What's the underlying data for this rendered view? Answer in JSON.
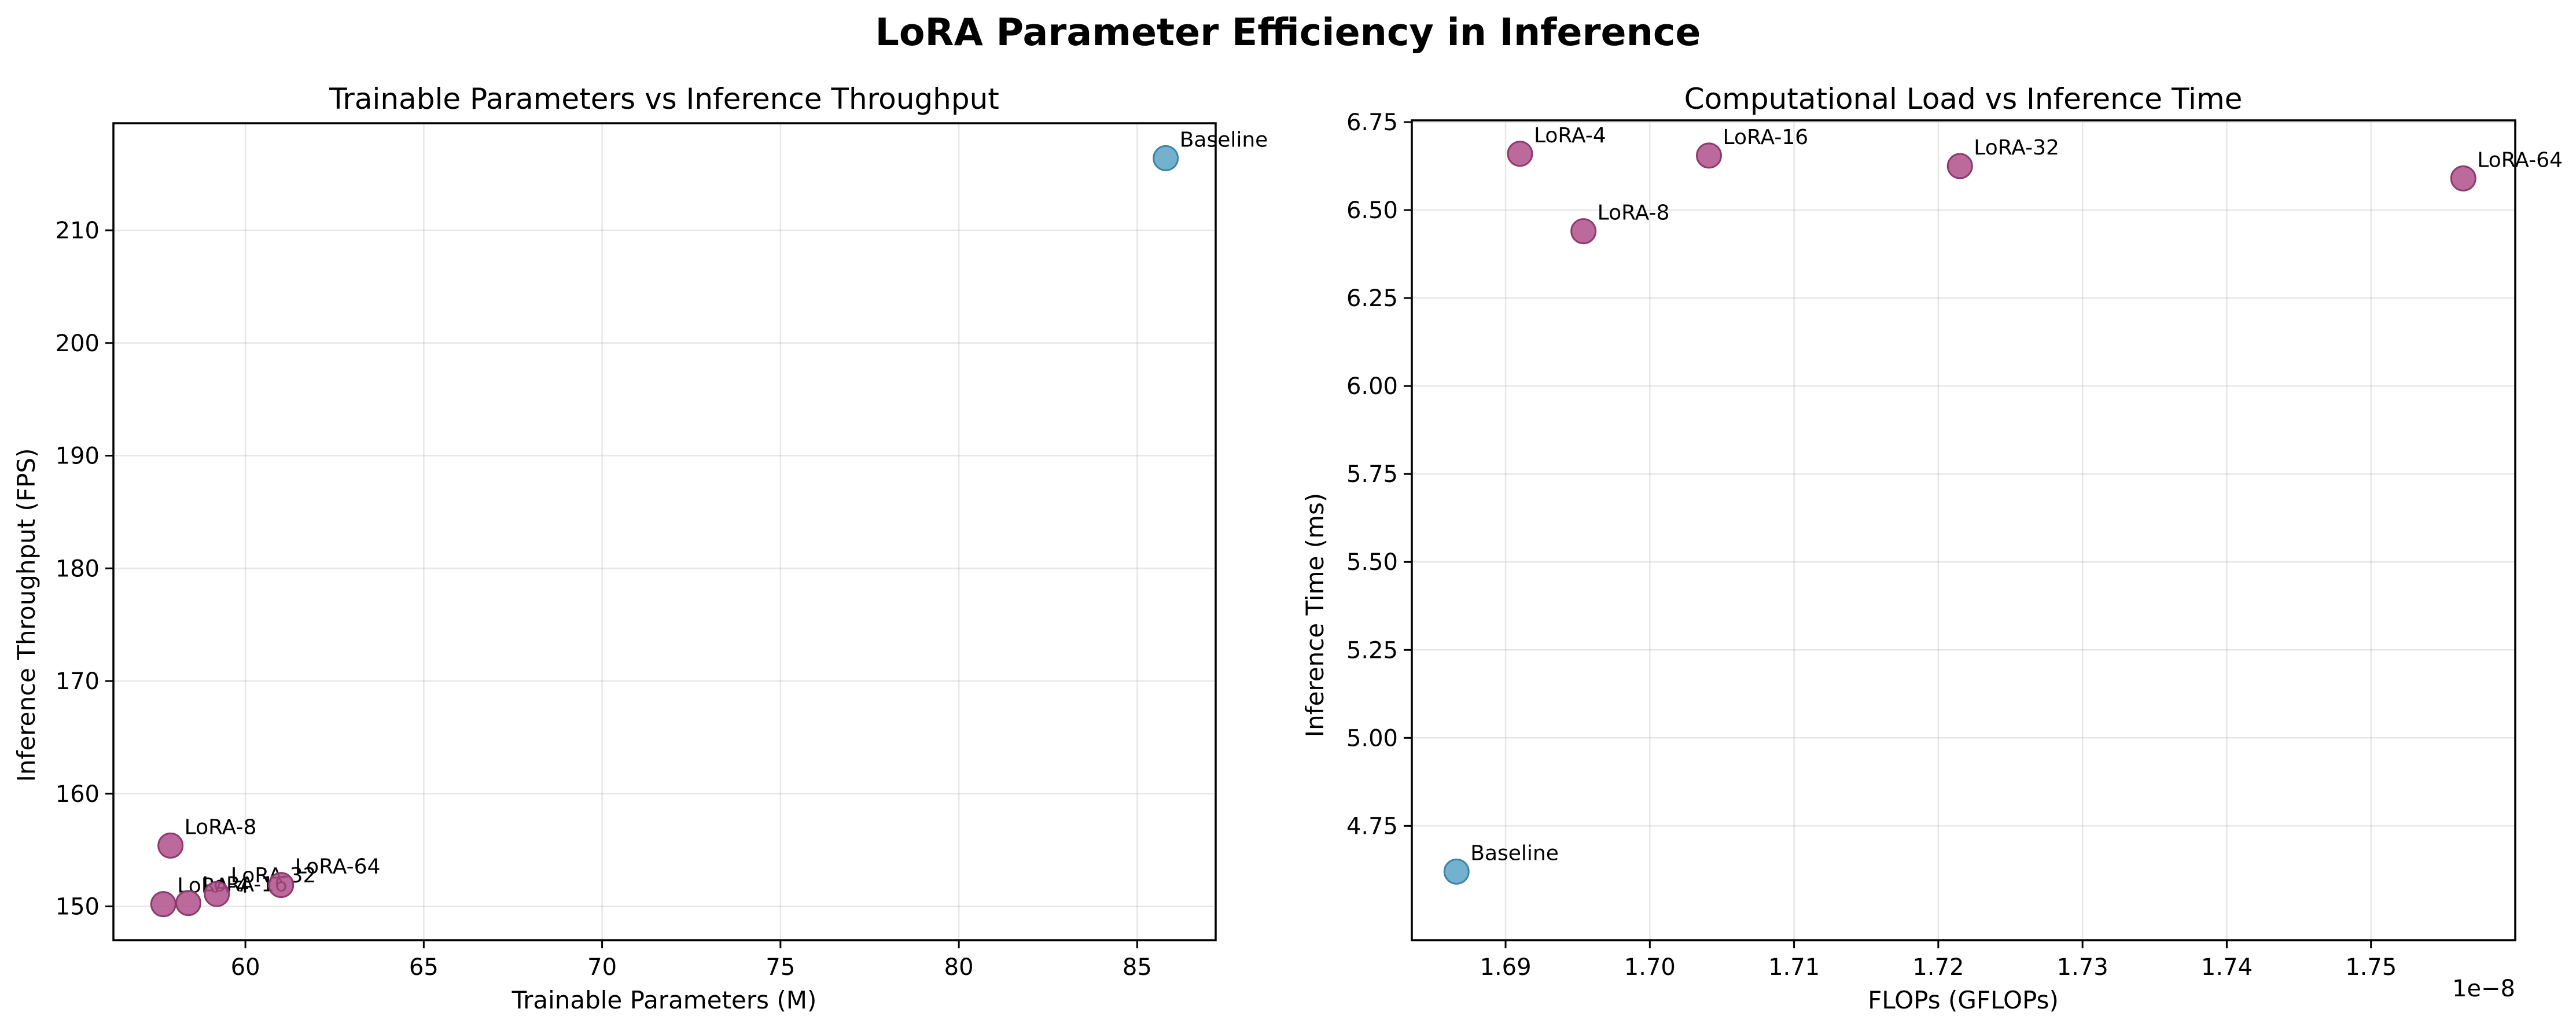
{
  "figure": {
    "title": "LoRA Parameter Efficiency in Inference"
  },
  "colors": {
    "baseline": "#5ba3c7",
    "baseline_edge": "#3d84a8",
    "lora": "#b0508a",
    "lora_edge": "#8c3b6d"
  },
  "chart_data": [
    {
      "type": "scatter",
      "title": "Trainable Parameters vs Inference Throughput",
      "xlabel": "Trainable Parameters (M)",
      "ylabel": "Inference Throughput (FPS)",
      "xlim": [
        56.3,
        87.2
      ],
      "ylim": [
        147.0,
        219.5
      ],
      "xticks": [
        60,
        65,
        70,
        75,
        80,
        85
      ],
      "yticks": [
        150,
        160,
        170,
        180,
        190,
        200,
        210
      ],
      "grid": true,
      "points": [
        {
          "label": "LoRA-4",
          "x": 57.7,
          "y": 150.2,
          "group": "lora"
        },
        {
          "label": "LoRA-8",
          "x": 57.9,
          "y": 155.4,
          "group": "lora"
        },
        {
          "label": "LoRA-16",
          "x": 58.4,
          "y": 150.3,
          "group": "lora"
        },
        {
          "label": "LoRA-32",
          "x": 59.2,
          "y": 151.1,
          "group": "lora"
        },
        {
          "label": "LoRA-64",
          "x": 61.0,
          "y": 151.9,
          "group": "lora"
        },
        {
          "label": "Baseline",
          "x": 85.8,
          "y": 216.4,
          "group": "baseline"
        }
      ]
    },
    {
      "type": "scatter",
      "title": "Computational Load vs Inference Time",
      "xlabel": "FLOPs (GFLOPs)",
      "ylabel": "Inference Time (ms)",
      "x_offset_label": "1e−8",
      "xlim": [
        1.6835,
        1.76
      ],
      "ylim": [
        4.425,
        6.755
      ],
      "xticks": [
        1.69,
        1.7,
        1.71,
        1.72,
        1.73,
        1.74,
        1.75
      ],
      "xtick_labels": [
        "1.69",
        "1.70",
        "1.71",
        "1.72",
        "1.73",
        "1.74",
        "1.75"
      ],
      "yticks": [
        4.75,
        5.0,
        5.25,
        5.5,
        5.75,
        6.0,
        6.25,
        6.5,
        6.75
      ],
      "ytick_labels": [
        "4.75",
        "5.00",
        "5.25",
        "5.50",
        "5.75",
        "6.00",
        "6.25",
        "6.50",
        "6.75"
      ],
      "grid": true,
      "points": [
        {
          "label": "Baseline",
          "x": 1.6866,
          "y": 4.62,
          "group": "baseline"
        },
        {
          "label": "LoRA-4",
          "x": 1.691,
          "y": 6.66,
          "group": "lora"
        },
        {
          "label": "LoRA-8",
          "x": 1.6954,
          "y": 6.44,
          "group": "lora"
        },
        {
          "label": "LoRA-16",
          "x": 1.7041,
          "y": 6.655,
          "group": "lora"
        },
        {
          "label": "LoRA-32",
          "x": 1.7215,
          "y": 6.625,
          "group": "lora"
        },
        {
          "label": "LoRA-64",
          "x": 1.7564,
          "y": 6.59,
          "group": "lora"
        }
      ]
    }
  ]
}
